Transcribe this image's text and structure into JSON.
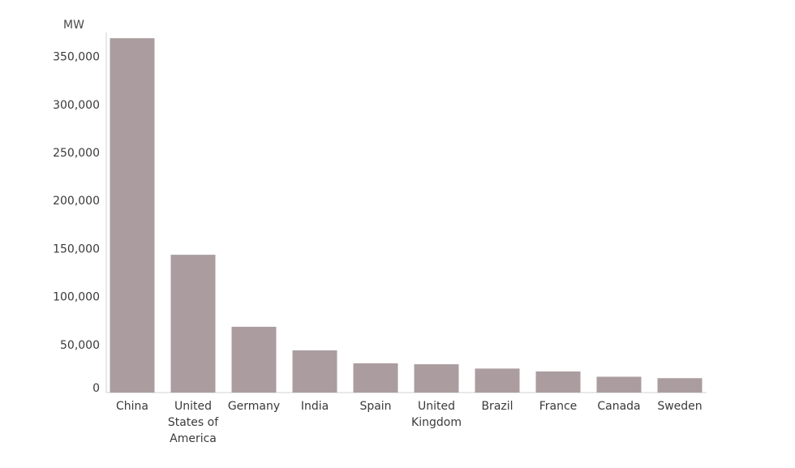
{
  "chart_data": {
    "type": "bar",
    "ylabel": "MW",
    "categories": [
      [
        "China"
      ],
      [
        "United",
        "States of",
        "America"
      ],
      [
        "Germany"
      ],
      [
        "India"
      ],
      [
        "Spain"
      ],
      [
        "United",
        "Kingdom"
      ],
      [
        "Brazil"
      ],
      [
        "France"
      ],
      [
        "Canada"
      ],
      [
        "Sweden"
      ]
    ],
    "values": [
      369000,
      143500,
      68500,
      44000,
      30500,
      29500,
      25000,
      22000,
      16500,
      15000
    ],
    "ylim": [
      0,
      375000
    ],
    "yticks": [
      0,
      50000,
      100000,
      150000,
      200000,
      250000,
      300000,
      350000
    ],
    "ytick_labels": [
      "0",
      "50,000",
      "100,000",
      "150,000",
      "200,000",
      "250,000",
      "300,000",
      "350,000"
    ],
    "grid": false,
    "legend": "none",
    "bar_color": "#ab9d9f",
    "axis_color": "#d0d0d0"
  }
}
